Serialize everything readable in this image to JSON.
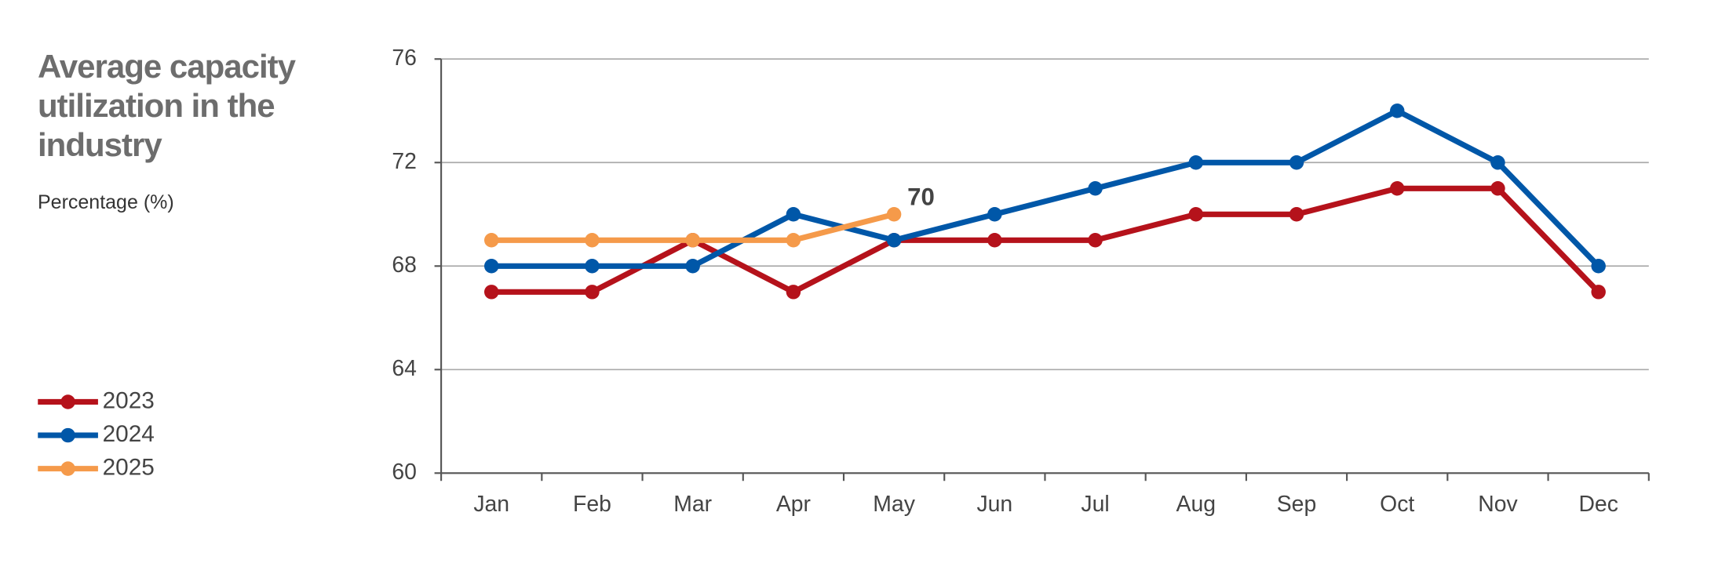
{
  "chart_data": {
    "type": "line",
    "title": "Average capacity utilization in the industry",
    "subtitle": "Percentage (%)",
    "categories": [
      "Jan",
      "Feb",
      "Mar",
      "Apr",
      "May",
      "Jun",
      "Jul",
      "Aug",
      "Sep",
      "Oct",
      "Nov",
      "Dec"
    ],
    "series": [
      {
        "name": "2023",
        "color": "#b5121b",
        "values": [
          67,
          67,
          69,
          67,
          69,
          69,
          69,
          70,
          70,
          71,
          71,
          67
        ]
      },
      {
        "name": "2024",
        "color": "#0057a8",
        "values": [
          68,
          68,
          68,
          70,
          69,
          70,
          71,
          72,
          72,
          74,
          72,
          68
        ]
      },
      {
        "name": "2025",
        "color": "#f59a4a",
        "values": [
          69,
          69,
          69,
          69,
          70,
          null,
          null,
          null,
          null,
          null,
          null,
          null
        ]
      }
    ],
    "ylim": [
      60,
      76
    ],
    "yticks": [
      60,
      64,
      68,
      72,
      76
    ],
    "grid": true,
    "legend": "bottom-left"
  }
}
